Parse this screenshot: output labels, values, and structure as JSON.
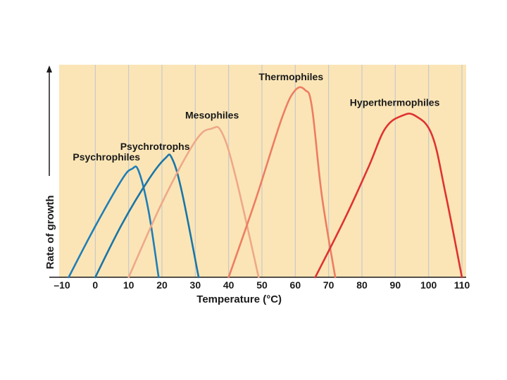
{
  "colors": {
    "plot_background": "#fbe5b6",
    "grid": "#c9c9c9",
    "axis": "#1a1a1a"
  },
  "chart_data": {
    "type": "line",
    "title": "",
    "xlabel": "Temperature (°C)",
    "ylabel": "Rate of growth",
    "xlim": [
      -10,
      112
    ],
    "ylim": [
      0,
      100
    ],
    "x_ticks": [
      -10,
      0,
      10,
      20,
      30,
      40,
      50,
      60,
      70,
      80,
      90,
      100,
      110
    ],
    "x_tick_labels": [
      "–10",
      "0",
      "10",
      "20",
      "30",
      "40",
      "50",
      "60",
      "70",
      "80",
      "90",
      "100",
      "110"
    ],
    "grid": "vertical",
    "series": [
      {
        "name": "Psychrophiles",
        "color": "#1f7eb8",
        "points": [
          [
            -8,
            0
          ],
          [
            0,
            24
          ],
          [
            8,
            46
          ],
          [
            11,
            51
          ],
          [
            13,
            50
          ],
          [
            16,
            31
          ],
          [
            19,
            0
          ]
        ]
      },
      {
        "name": "Psychrotrophs",
        "color": "#1a75a8",
        "points": [
          [
            0,
            0
          ],
          [
            8,
            25
          ],
          [
            16,
            46
          ],
          [
            21,
            56
          ],
          [
            23,
            56
          ],
          [
            26,
            40
          ],
          [
            31,
            0
          ]
        ]
      },
      {
        "name": "Mesophiles",
        "color": "#eea889",
        "points": [
          [
            10,
            0
          ],
          [
            20,
            35
          ],
          [
            30,
            64
          ],
          [
            35,
            70
          ],
          [
            38,
            68
          ],
          [
            42,
            48
          ],
          [
            49,
            0
          ]
        ]
      },
      {
        "name": "Thermophiles",
        "color": "#ed7d62",
        "points": [
          [
            40,
            0
          ],
          [
            48,
            36
          ],
          [
            56,
            75
          ],
          [
            60,
            88
          ],
          [
            63,
            88
          ],
          [
            65,
            80
          ],
          [
            68,
            38
          ],
          [
            72,
            0
          ]
        ]
      },
      {
        "name": "Hyperthermophiles",
        "color": "#df3231",
        "points": [
          [
            66,
            0
          ],
          [
            75,
            28
          ],
          [
            82,
            52
          ],
          [
            87,
            70
          ],
          [
            92,
            76
          ],
          [
            96,
            76
          ],
          [
            101,
            67
          ],
          [
            105,
            40
          ],
          [
            110,
            0
          ]
        ]
      }
    ]
  }
}
